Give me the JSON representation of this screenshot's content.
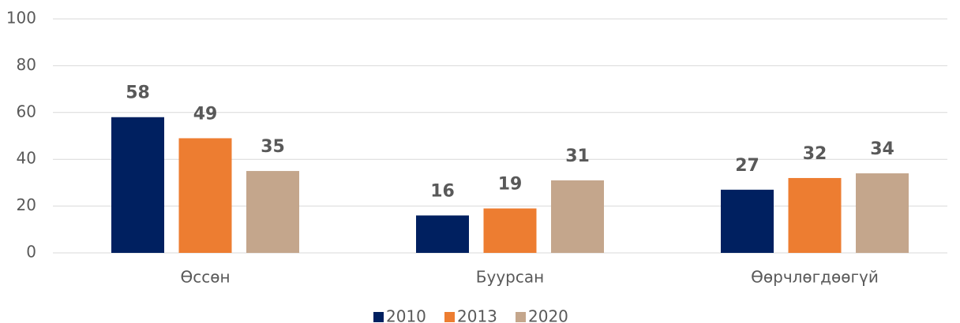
{
  "chart_data": {
    "type": "bar",
    "categories": [
      "Өссөн",
      "Буурсан",
      "Өөрчлөгдөөгүй"
    ],
    "series": [
      {
        "name": "2010",
        "color": "#002060",
        "values": [
          58,
          16,
          27
        ]
      },
      {
        "name": "2013",
        "color": "#ED7D31",
        "values": [
          49,
          19,
          32
        ]
      },
      {
        "name": "2020",
        "color": "#C4A68C",
        "values": [
          35,
          31,
          34
        ]
      }
    ],
    "ylim": [
      0,
      100
    ],
    "yticks": [
      0,
      20,
      40,
      60,
      80,
      100
    ],
    "grid": true,
    "legend": "bottom"
  }
}
